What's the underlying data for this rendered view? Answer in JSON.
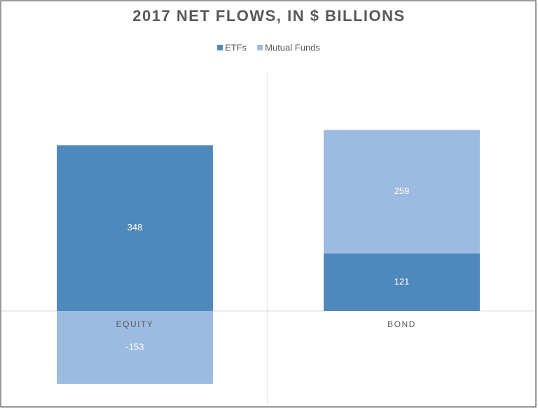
{
  "chart_data": {
    "type": "stacked-bar",
    "title": "2017 NET FLOWS, IN $ BILLIONS",
    "categories": [
      "EQUITY",
      "BOND"
    ],
    "series": [
      {
        "name": "ETFs",
        "color": "#4f88bb",
        "values": [
          348,
          121
        ]
      },
      {
        "name": "Mutual Funds",
        "color": "#9dbbe0",
        "values": [
          -153,
          259
        ]
      }
    ],
    "ylim": [
      -200,
      500
    ],
    "legend": "top"
  }
}
